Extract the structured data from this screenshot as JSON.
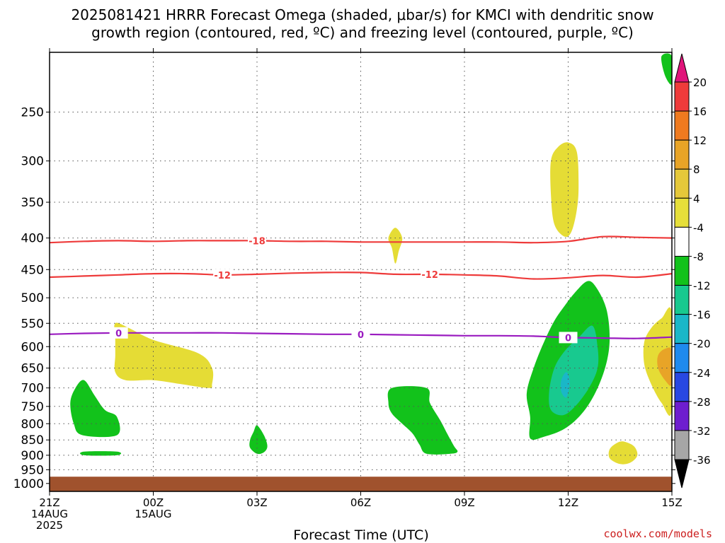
{
  "title": {
    "line1": "2025081421 HRRR Forecast Omega (shaded, μbar/s) for KMCI with dendritic snow",
    "line2": "growth region (contoured, red, ºC) and freezing level (contoured, purple, ºC)"
  },
  "credit": "coolwx.com/models",
  "chart_data": {
    "type": "heatmap",
    "title": "2025081421 HRRR Forecast Omega (shaded, μbar/s) for KMCI with dendritic snow growth region (contoured, red, ºC) and freezing level (contoured, purple, ºC)",
    "xlabel": "Forecast Time (UTC)",
    "ylabel": "",
    "x_ticks": [
      {
        "hour": 0,
        "lines": [
          "21Z",
          "14AUG",
          "2025"
        ]
      },
      {
        "hour": 3,
        "lines": [
          "00Z",
          "15AUG"
        ]
      },
      {
        "hour": 6,
        "lines": [
          "03Z"
        ]
      },
      {
        "hour": 9,
        "lines": [
          "06Z"
        ]
      },
      {
        "hour": 12,
        "lines": [
          "09Z"
        ]
      },
      {
        "hour": 15,
        "lines": [
          "12Z"
        ]
      },
      {
        "hour": 18,
        "lines": [
          "15Z"
        ]
      }
    ],
    "xlim_hours": [
      0,
      18
    ],
    "y_ticks": [
      250,
      300,
      350,
      400,
      450,
      500,
      550,
      600,
      650,
      700,
      750,
      800,
      850,
      900,
      950,
      1000
    ],
    "ylim_hPa": [
      200,
      1030
    ],
    "y_scale": "log-pressure (inverted)",
    "grid": true,
    "ground_level_hPa": 975,
    "colorbar": {
      "labels": [
        "20",
        "16",
        "12",
        "8",
        "4",
        "-4",
        "-8",
        "-12",
        "-16",
        "-20",
        "-24",
        "-28",
        "-32",
        "-36"
      ],
      "colors": [
        "#ef3b3b",
        "#ef7a1f",
        "#e8a427",
        "#e5c83a",
        "#e6df3a",
        "#ffffff",
        "#12c21b",
        "#18c98f",
        "#1ab7c8",
        "#1f8aee",
        "#2848e2",
        "#6e1ecf",
        "#a31bc5",
        "#a6a6a6"
      ],
      "top_color": "#e0147a",
      "bottom_color": "#000000"
    },
    "contours": [
      {
        "name": "-18",
        "color": "#ee3b3b",
        "label_positions_hours": [
          6
        ],
        "points": [
          [
            0,
            407
          ],
          [
            1,
            405
          ],
          [
            2,
            404
          ],
          [
            3,
            405
          ],
          [
            4,
            404
          ],
          [
            5,
            404
          ],
          [
            6,
            404
          ],
          [
            7,
            405
          ],
          [
            8,
            405
          ],
          [
            9,
            406
          ],
          [
            10,
            406
          ],
          [
            11,
            406
          ],
          [
            12,
            406
          ],
          [
            13,
            406
          ],
          [
            14,
            407
          ],
          [
            15,
            405
          ],
          [
            16,
            398
          ],
          [
            17,
            399
          ],
          [
            18,
            400
          ]
        ]
      },
      {
        "name": "-12",
        "color": "#ee3b3b",
        "label_positions_hours": [
          5,
          11
        ],
        "points": [
          [
            0,
            463
          ],
          [
            1,
            461
          ],
          [
            2,
            459
          ],
          [
            3,
            457
          ],
          [
            4,
            457
          ],
          [
            5,
            459
          ],
          [
            6,
            458
          ],
          [
            7,
            456
          ],
          [
            8,
            455
          ],
          [
            9,
            455
          ],
          [
            10,
            458
          ],
          [
            11,
            458
          ],
          [
            12,
            459
          ],
          [
            13,
            461
          ],
          [
            14,
            466
          ],
          [
            15,
            464
          ],
          [
            16,
            460
          ],
          [
            17,
            463
          ],
          [
            18,
            457
          ]
        ]
      },
      {
        "name": "0",
        "color": "#9a1bc0",
        "label_positions_hours": [
          2,
          9,
          15
        ],
        "points": [
          [
            0,
            573
          ],
          [
            1,
            571
          ],
          [
            2,
            570
          ],
          [
            3,
            570
          ],
          [
            4,
            570
          ],
          [
            5,
            570
          ],
          [
            6,
            571
          ],
          [
            7,
            572
          ],
          [
            8,
            573
          ],
          [
            9,
            573
          ],
          [
            10,
            574
          ],
          [
            11,
            575
          ],
          [
            12,
            576
          ],
          [
            13,
            576
          ],
          [
            14,
            577
          ],
          [
            15,
            580
          ],
          [
            16,
            581
          ],
          [
            17,
            582
          ],
          [
            18,
            579
          ]
        ]
      }
    ],
    "shaded_regions": [
      {
        "value": 4,
        "color": "#e5dc35",
        "points": [
          [
            1.9,
            550
          ],
          [
            2.3,
            560
          ],
          [
            3,
            585
          ],
          [
            4.3,
            615
          ],
          [
            4.7,
            650
          ],
          [
            4.7,
            690
          ],
          [
            4.6,
            700
          ],
          [
            3.8,
            690
          ],
          [
            3.0,
            680
          ],
          [
            2.2,
            680
          ],
          [
            1.9,
            660
          ],
          [
            1.9,
            620
          ],
          [
            1.9,
            585
          ]
        ]
      },
      {
        "value": 4,
        "color": "#e5dc35",
        "points": [
          [
            10,
            385
          ],
          [
            10.2,
            400
          ],
          [
            10.1,
            420
          ],
          [
            10,
            440
          ],
          [
            9.9,
            415
          ],
          [
            9.8,
            400
          ]
        ]
      },
      {
        "value": 4,
        "color": "#e5dc35",
        "points": [
          [
            15,
            280
          ],
          [
            15.25,
            290
          ],
          [
            15.3,
            330
          ],
          [
            15.25,
            360
          ],
          [
            15.1,
            390
          ],
          [
            14.9,
            398
          ],
          [
            14.6,
            380
          ],
          [
            14.5,
            340
          ],
          [
            14.5,
            300
          ],
          [
            14.7,
            285
          ]
        ]
      },
      {
        "value": 4,
        "color": "#e5dc35",
        "points": [
          [
            18,
            530
          ],
          [
            18,
            760
          ],
          [
            17.7,
            740
          ],
          [
            17.4,
            690
          ],
          [
            17.2,
            640
          ],
          [
            17.2,
            590
          ],
          [
            17.4,
            560
          ],
          [
            17.7,
            540
          ]
        ]
      },
      {
        "value": 8,
        "color": "#e8a427",
        "points": [
          [
            18,
            610
          ],
          [
            18,
            690
          ],
          [
            17.8,
            680
          ],
          [
            17.6,
            650
          ],
          [
            17.6,
            620
          ],
          [
            17.8,
            605
          ]
        ]
      },
      {
        "value": 4,
        "color": "#e5dc35",
        "points": [
          [
            16.6,
            855
          ],
          [
            16.9,
            870
          ],
          [
            17,
            900
          ],
          [
            16.8,
            925
          ],
          [
            16.5,
            930
          ],
          [
            16.2,
            910
          ],
          [
            16.2,
            880
          ],
          [
            16.4,
            860
          ]
        ]
      },
      {
        "value": -4,
        "color": "#12c21b",
        "points": [
          [
            1.0,
            680
          ],
          [
            1.3,
            720
          ],
          [
            1.6,
            760
          ],
          [
            1.95,
            780
          ],
          [
            1.95,
            835
          ],
          [
            0.95,
            835
          ],
          [
            0.7,
            800
          ],
          [
            0.6,
            740
          ],
          [
            0.75,
            700
          ]
        ]
      },
      {
        "value": -4,
        "color": "#12c21b",
        "points": [
          [
            1.0,
            888
          ],
          [
            1.95,
            888
          ],
          [
            1.95,
            900
          ],
          [
            1.0,
            900
          ]
        ]
      },
      {
        "value": -4,
        "color": "#12c21b",
        "points": [
          [
            6,
            805
          ],
          [
            6.2,
            835
          ],
          [
            6.3,
            870
          ],
          [
            6.2,
            890
          ],
          [
            6,
            895
          ],
          [
            5.8,
            875
          ],
          [
            5.8,
            850
          ],
          [
            5.9,
            825
          ]
        ]
      },
      {
        "value": -4,
        "color": "#12c21b",
        "points": [
          [
            9.9,
            700
          ],
          [
            10.9,
            700
          ],
          [
            11.0,
            740
          ],
          [
            11.3,
            790
          ],
          [
            11.5,
            830
          ],
          [
            11.7,
            870
          ],
          [
            11.8,
            888
          ],
          [
            11.6,
            895
          ],
          [
            10.9,
            895
          ],
          [
            10.7,
            865
          ],
          [
            10.5,
            830
          ],
          [
            10.2,
            800
          ],
          [
            9.9,
            770
          ],
          [
            9.8,
            740
          ]
        ]
      },
      {
        "value": -4,
        "color": "#12c21b",
        "points": [
          [
            15.55,
            470
          ],
          [
            15.8,
            480
          ],
          [
            16.1,
            520
          ],
          [
            16.2,
            580
          ],
          [
            16.1,
            640
          ],
          [
            15.8,
            710
          ],
          [
            15.4,
            770
          ],
          [
            14.9,
            815
          ],
          [
            14.3,
            840
          ],
          [
            13.9,
            845
          ],
          [
            13.9,
            780
          ],
          [
            13.8,
            715
          ],
          [
            14,
            650
          ],
          [
            14.3,
            590
          ],
          [
            14.6,
            545
          ],
          [
            14.9,
            515
          ],
          [
            15.2,
            490
          ]
        ]
      },
      {
        "value": -8,
        "color": "#18c98f",
        "points": [
          [
            15.7,
            555
          ],
          [
            15.85,
            600
          ],
          [
            15.85,
            650
          ],
          [
            15.6,
            700
          ],
          [
            15.2,
            750
          ],
          [
            14.85,
            775
          ],
          [
            14.5,
            760
          ],
          [
            14.45,
            710
          ],
          [
            14.6,
            650
          ],
          [
            14.9,
            610
          ],
          [
            15.3,
            580
          ]
        ]
      },
      {
        "value": -12,
        "color": "#1ab7c8",
        "points": [
          [
            14.95,
            660
          ],
          [
            15.05,
            685
          ],
          [
            14.95,
            725
          ],
          [
            14.8,
            710
          ],
          [
            14.8,
            680
          ]
        ]
      },
      {
        "value": -4,
        "color": "#12c21b",
        "points": [
          [
            17.7,
            203
          ],
          [
            18,
            203
          ],
          [
            18,
            225
          ],
          [
            17.8,
            218
          ]
        ]
      }
    ]
  }
}
